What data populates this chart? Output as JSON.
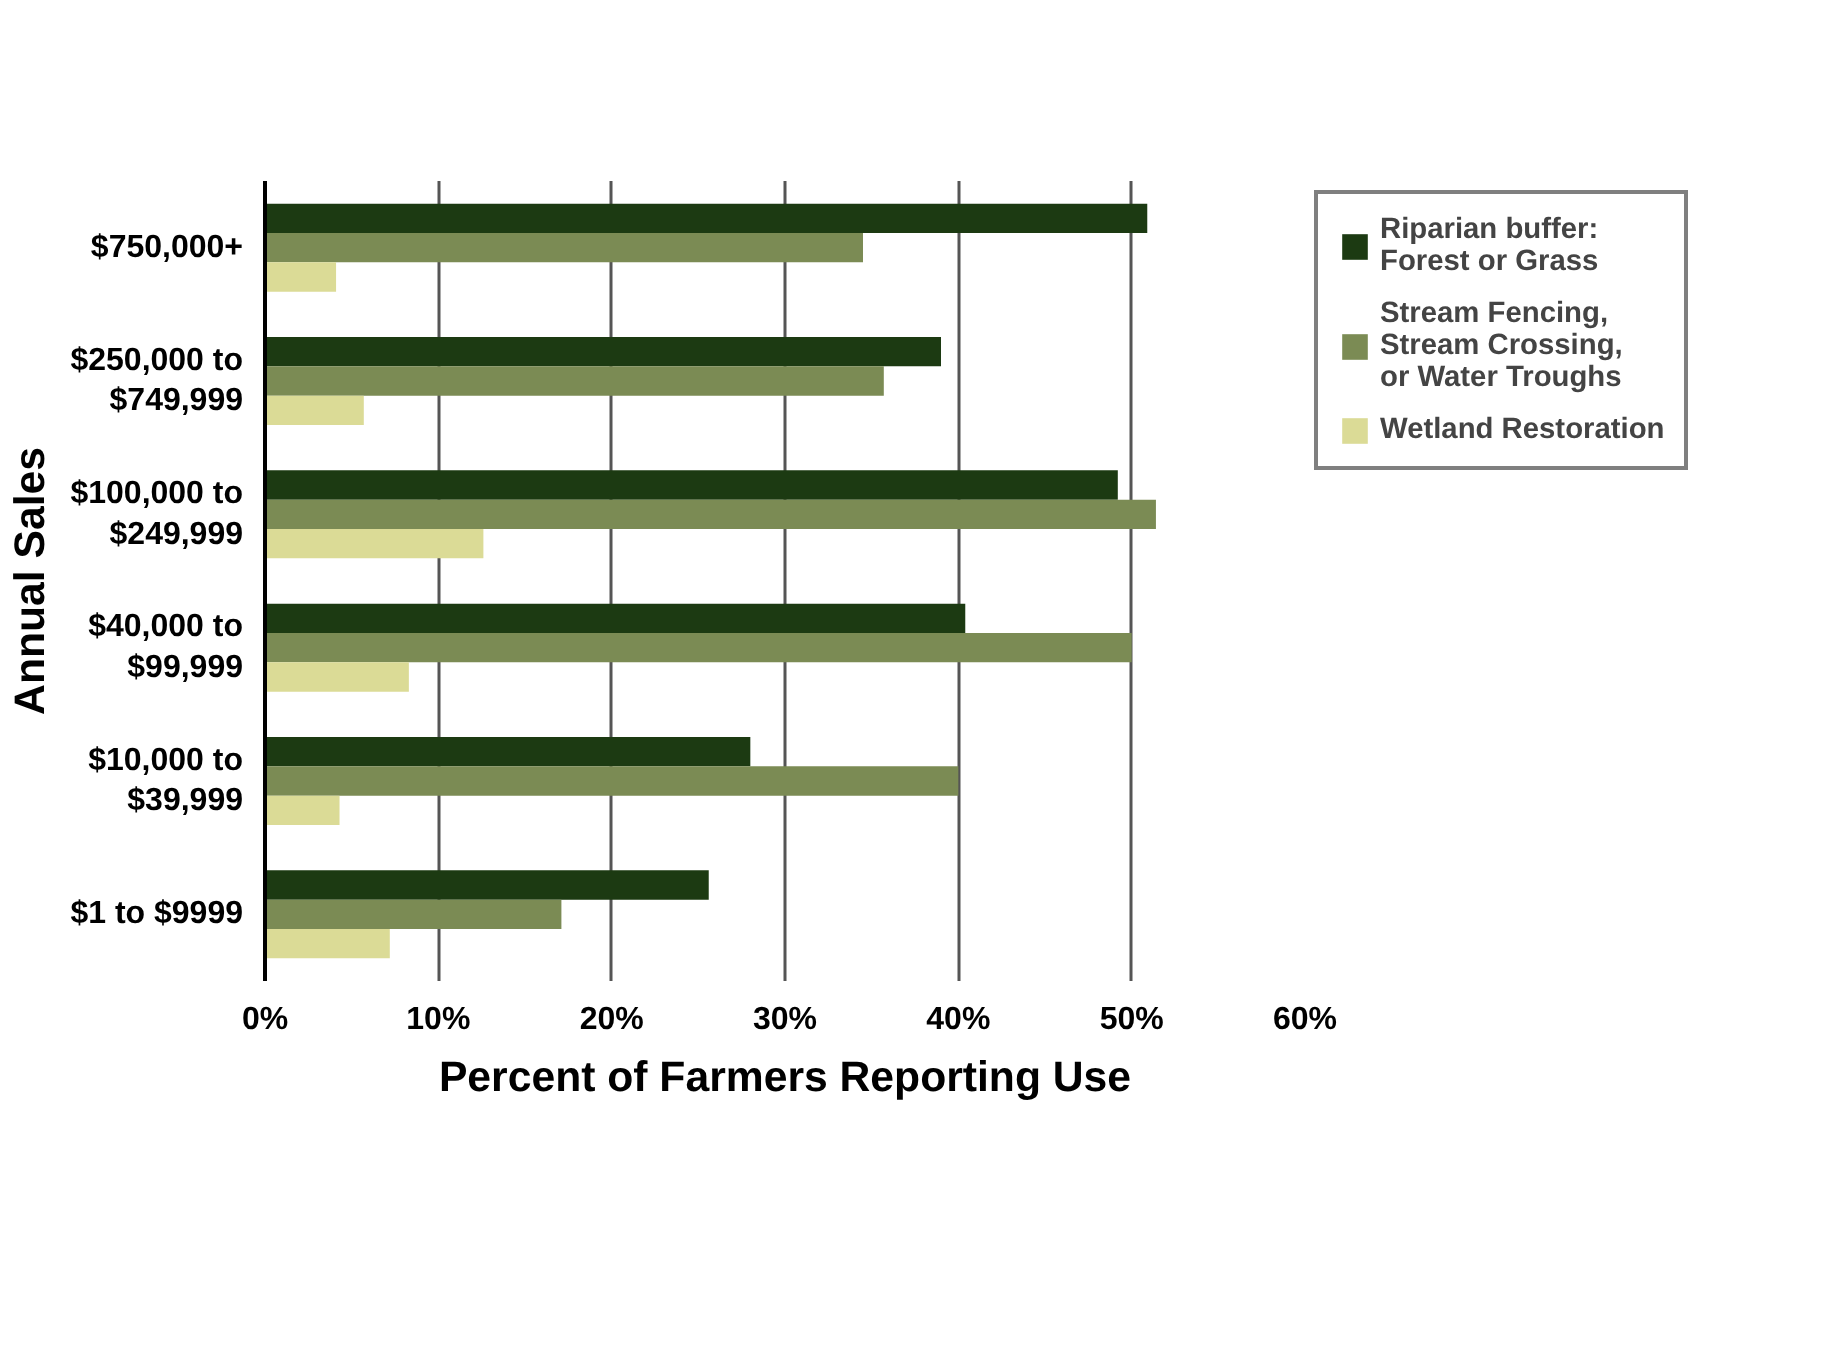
{
  "chart_data": {
    "type": "bar",
    "orientation": "horizontal",
    "xlabel": "Percent of Farmers Reporting Use",
    "ylabel": "Annual Sales",
    "categories": [
      "$750,000+",
      "$250,000 to\n$749,999",
      "$100,000 to\n$249,999",
      "$40,000 to\n$99,999",
      "$10,000 to\n$39,999",
      "$1 to $9999"
    ],
    "series": [
      {
        "name": "Riparian buffer:\nForest or Grass",
        "color": "#1c3a12",
        "values": [
          50.9,
          39.0,
          49.2,
          40.4,
          28.0,
          25.6
        ]
      },
      {
        "name": "Stream Fencing,\nStream Crossing,\nor Water Troughs",
        "color": "#7b8b54",
        "values": [
          34.5,
          35.7,
          51.4,
          50.0,
          40.0,
          17.1
        ]
      },
      {
        "name": "Wetland Restoration",
        "color": "#dbdb96",
        "values": [
          4.1,
          5.7,
          12.6,
          8.3,
          4.3,
          7.2
        ]
      }
    ],
    "xlim": [
      0,
      60
    ],
    "xticks": [
      {
        "value": 0,
        "label": "0%"
      },
      {
        "value": 10,
        "label": "10%"
      },
      {
        "value": 20,
        "label": "20%"
      },
      {
        "value": 30,
        "label": "30%"
      },
      {
        "value": 40,
        "label": "40%"
      },
      {
        "value": 50,
        "label": "50%"
      },
      {
        "value": 60,
        "label": "60%"
      }
    ],
    "grid": "x",
    "legend": "top right"
  }
}
